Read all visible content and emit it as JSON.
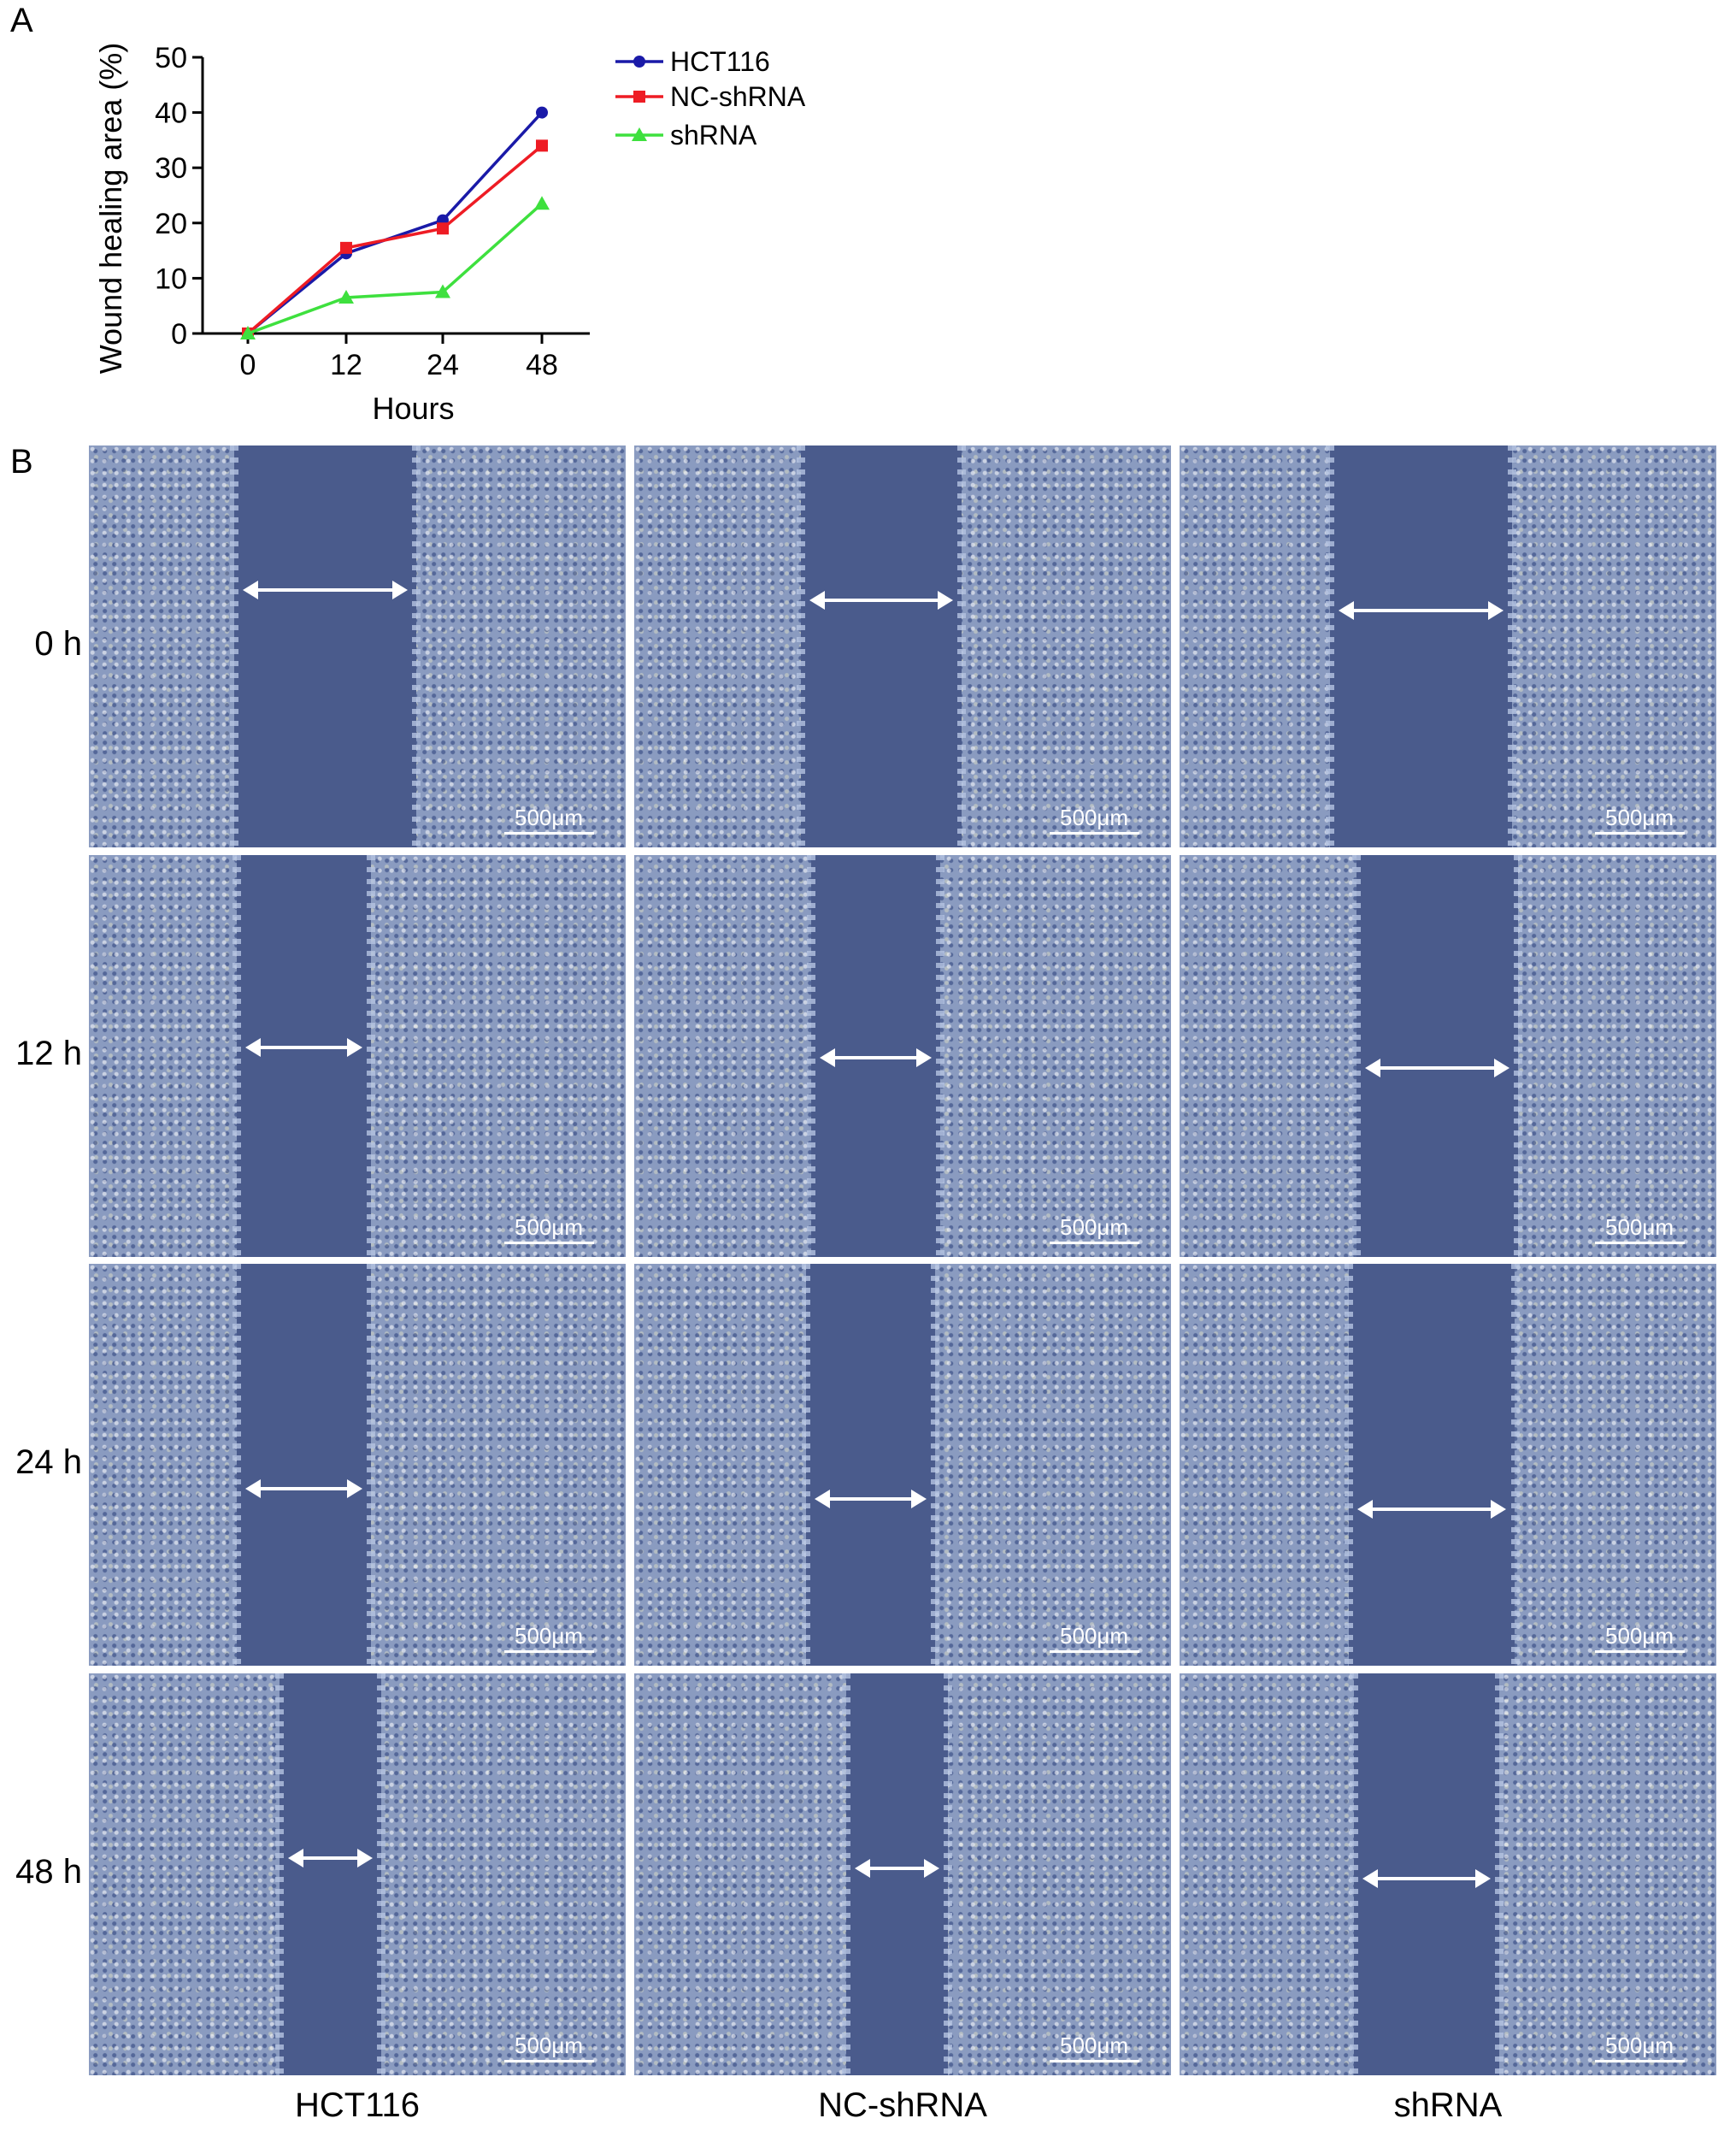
{
  "panels": {
    "a": "A",
    "b": "B"
  },
  "chart_data": {
    "type": "line",
    "x": [
      0,
      12,
      24,
      48
    ],
    "categories": [
      "0",
      "12",
      "24",
      "48"
    ],
    "xlabel": "Hours",
    "ylabel": "Wound healing area (%)",
    "ylim": [
      0,
      50
    ],
    "yticks": [
      0,
      10,
      20,
      30,
      40,
      50
    ],
    "series": [
      {
        "name": "HCT116",
        "values": [
          0,
          14.5,
          20.5,
          40
        ],
        "color": "#1a1aa8",
        "marker": "circle"
      },
      {
        "name": "NC-shRNA",
        "values": [
          0,
          15.5,
          19,
          34
        ],
        "color": "#ee1c24",
        "marker": "square"
      },
      {
        "name": "shRNA",
        "values": [
          0,
          6.5,
          7.5,
          23.5
        ],
        "color": "#3ee03e",
        "marker": "triangle"
      }
    ],
    "legend": "right"
  },
  "micrographs": {
    "rows": [
      "0 h",
      "12 h",
      "24 h",
      "48 h"
    ],
    "columns": [
      "HCT116",
      "NC-shRNA",
      "shRNA"
    ],
    "scale_label": "500μm",
    "wound_width_fraction": [
      [
        0.34,
        0.3,
        0.34
      ],
      [
        0.25,
        0.24,
        0.3
      ],
      [
        0.25,
        0.24,
        0.31
      ],
      [
        0.19,
        0.19,
        0.27
      ]
    ]
  }
}
